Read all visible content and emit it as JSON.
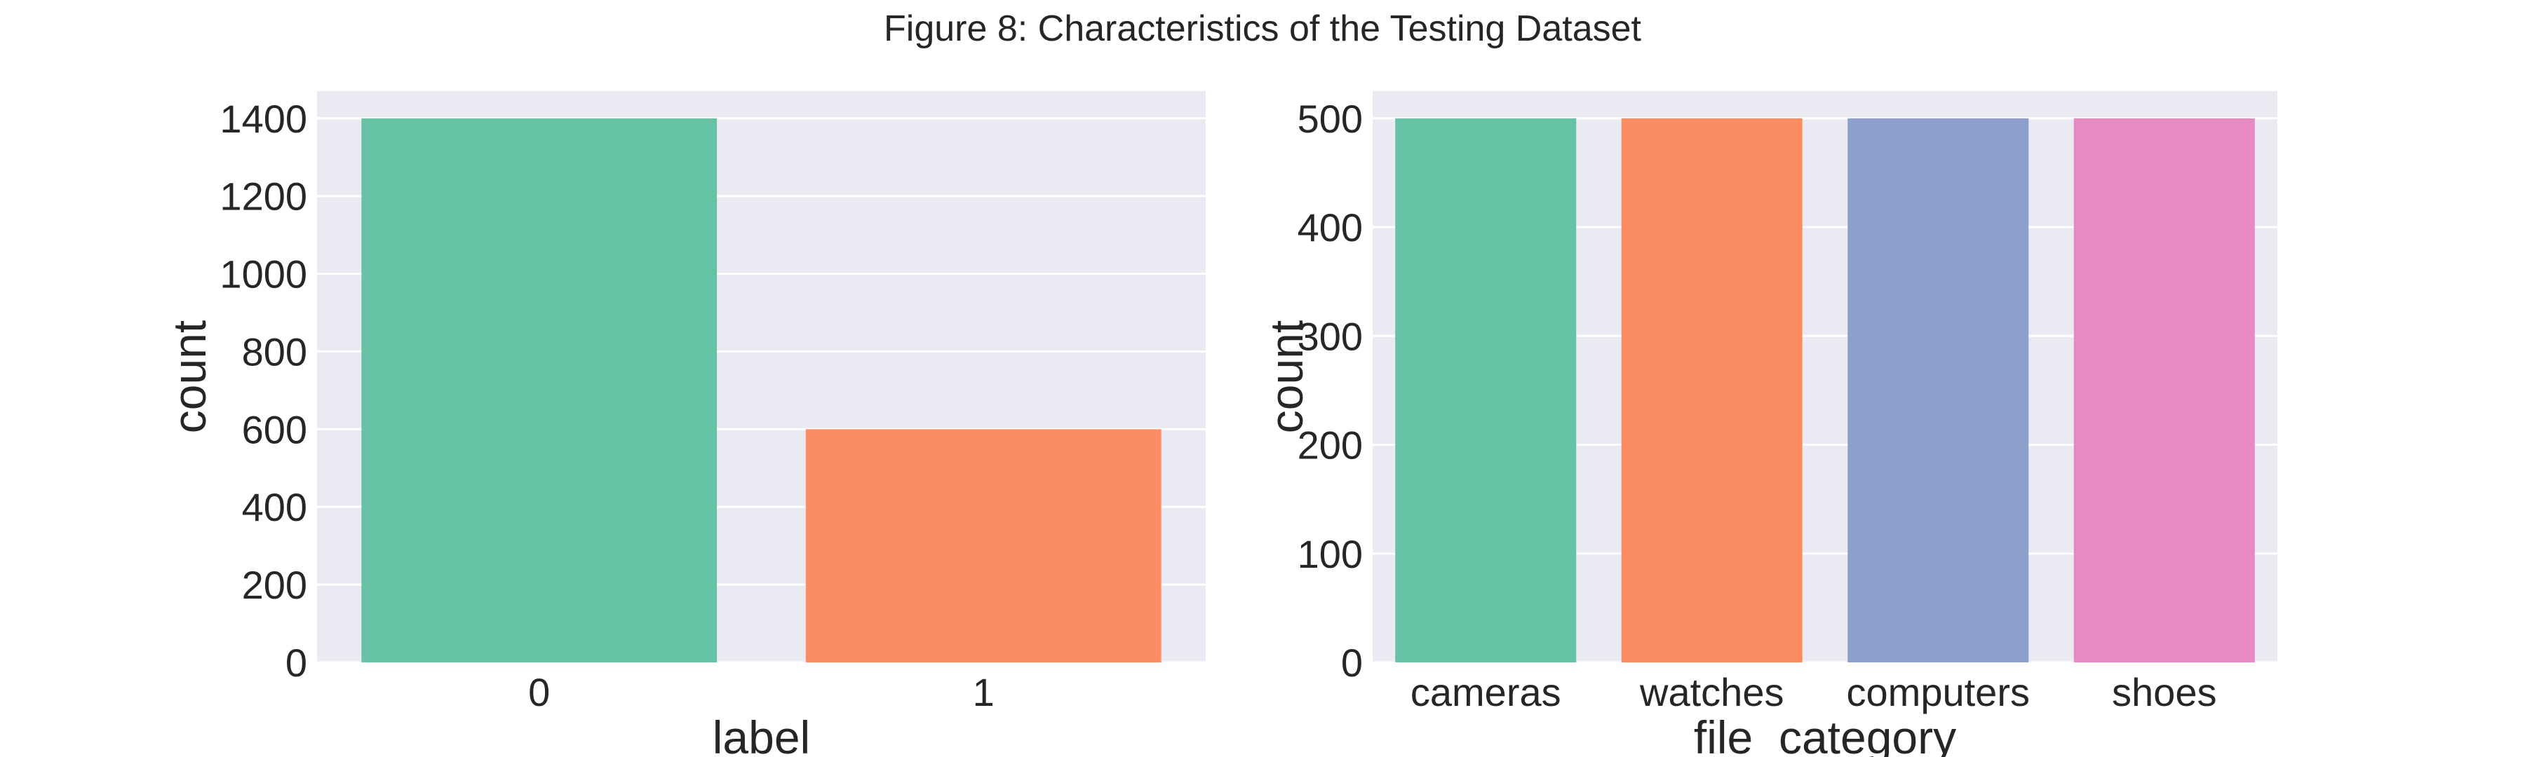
{
  "figure": {
    "title": "Figure 8: Characteristics of the Testing Dataset",
    "background": "#ffffff",
    "panel_background": "#eaeaf2",
    "grid_color": "#ffffff"
  },
  "chart_data": [
    {
      "type": "bar",
      "title": "",
      "xlabel": "label",
      "ylabel": "count",
      "categories": [
        "0",
        "1"
      ],
      "values": [
        1400,
        600
      ],
      "colors": [
        "#66c2a5",
        "#fc8d62"
      ],
      "ylim": [
        0,
        1470
      ],
      "yticks": [
        0,
        200,
        400,
        600,
        800,
        1000,
        1200,
        1400
      ],
      "grid": true,
      "legend": "none"
    },
    {
      "type": "bar",
      "title": "",
      "xlabel": "file_category",
      "ylabel": "count",
      "categories": [
        "cameras",
        "watches",
        "computers",
        "shoes"
      ],
      "values": [
        500,
        500,
        500,
        500
      ],
      "colors": [
        "#66c2a5",
        "#fc8d62",
        "#8da0cb",
        "#e78ac3"
      ],
      "ylim": [
        0,
        525
      ],
      "yticks": [
        0,
        100,
        200,
        300,
        400,
        500
      ],
      "grid": true,
      "legend": "none"
    }
  ]
}
